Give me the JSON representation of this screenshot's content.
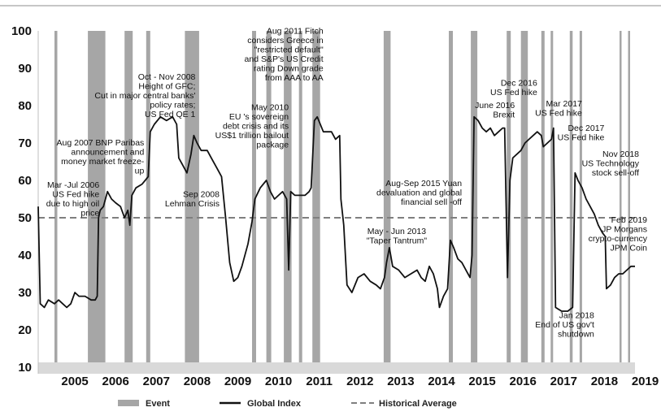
{
  "chart_data": {
    "type": "line",
    "title": "",
    "xlabel": "",
    "ylabel": "",
    "ylim": [
      10,
      100
    ],
    "xlim": [
      2004.6,
      2019.25
    ],
    "yticks": [
      10,
      20,
      30,
      40,
      50,
      60,
      70,
      80,
      90,
      100
    ],
    "xticks": [
      "2005",
      "2006",
      "2007",
      "2008",
      "2009",
      "2010",
      "2011",
      "2012",
      "2013",
      "2014",
      "2015",
      "2016",
      "2017",
      "2018",
      "2019"
    ],
    "grid": false,
    "legend_position": "bottom",
    "legend": [
      {
        "label": "Event",
        "kind": "bar"
      },
      {
        "label": "Global Index",
        "kind": "line"
      },
      {
        "label": "Historical Average",
        "kind": "dashed"
      }
    ],
    "colors": {
      "event": "#a6a6a6",
      "line": "#111111",
      "average": "#7f7f7f",
      "axis_band": "#d9d9d9"
    },
    "historical_average": 50,
    "events": [
      {
        "start": 2005.0,
        "end": 2005.07
      },
      {
        "start": 2005.82,
        "end": 2006.25
      },
      {
        "start": 2006.72,
        "end": 2006.92
      },
      {
        "start": 2007.25,
        "end": 2007.35
      },
      {
        "start": 2008.2,
        "end": 2008.55
      },
      {
        "start": 2009.85,
        "end": 2009.95
      },
      {
        "start": 2010.2,
        "end": 2010.32
      },
      {
        "start": 2010.63,
        "end": 2010.82
      },
      {
        "start": 2011.0,
        "end": 2011.08
      },
      {
        "start": 2011.33,
        "end": 2011.52
      },
      {
        "start": 2013.08,
        "end": 2013.25
      },
      {
        "start": 2014.68,
        "end": 2014.78
      },
      {
        "start": 2015.22,
        "end": 2015.38
      },
      {
        "start": 2016.1,
        "end": 2016.2
      },
      {
        "start": 2016.45,
        "end": 2016.62
      },
      {
        "start": 2016.95,
        "end": 2017.03
      },
      {
        "start": 2017.18,
        "end": 2017.24
      },
      {
        "start": 2017.65,
        "end": 2017.72
      },
      {
        "start": 2017.89,
        "end": 2017.95
      },
      {
        "start": 2018.87,
        "end": 2018.92
      },
      {
        "start": 2019.08,
        "end": 2019.13
      }
    ],
    "series": [
      {
        "values": [
          [
            2004.6,
            53
          ],
          [
            2004.65,
            27
          ],
          [
            2004.75,
            26
          ],
          [
            2004.85,
            28
          ],
          [
            2005.0,
            27
          ],
          [
            2005.1,
            28
          ],
          [
            2005.2,
            27
          ],
          [
            2005.3,
            26
          ],
          [
            2005.4,
            27
          ],
          [
            2005.5,
            30
          ],
          [
            2005.6,
            29
          ],
          [
            2005.75,
            29
          ],
          [
            2005.9,
            28
          ],
          [
            2006.0,
            28
          ],
          [
            2006.05,
            29
          ],
          [
            2006.08,
            50
          ],
          [
            2006.12,
            52
          ],
          [
            2006.2,
            53
          ],
          [
            2006.3,
            57
          ],
          [
            2006.4,
            55
          ],
          [
            2006.5,
            54
          ],
          [
            2006.62,
            53
          ],
          [
            2006.72,
            50
          ],
          [
            2006.8,
            52
          ],
          [
            2006.85,
            48
          ],
          [
            2006.9,
            56
          ],
          [
            2007.0,
            58
          ],
          [
            2007.15,
            59
          ],
          [
            2007.3,
            61
          ],
          [
            2007.35,
            73
          ],
          [
            2007.45,
            75
          ],
          [
            2007.6,
            77
          ],
          [
            2007.75,
            76
          ],
          [
            2007.9,
            77
          ],
          [
            2008.0,
            75
          ],
          [
            2008.05,
            66
          ],
          [
            2008.15,
            64
          ],
          [
            2008.25,
            62
          ],
          [
            2008.35,
            67
          ],
          [
            2008.42,
            72
          ],
          [
            2008.5,
            70
          ],
          [
            2008.6,
            68
          ],
          [
            2008.75,
            68
          ],
          [
            2008.85,
            66
          ],
          [
            2009.0,
            63
          ],
          [
            2009.1,
            61
          ],
          [
            2009.2,
            50
          ],
          [
            2009.3,
            38
          ],
          [
            2009.4,
            33
          ],
          [
            2009.5,
            34
          ],
          [
            2009.6,
            37
          ],
          [
            2009.75,
            43
          ],
          [
            2009.85,
            49
          ],
          [
            2009.92,
            55
          ],
          [
            2010.05,
            58
          ],
          [
            2010.2,
            60
          ],
          [
            2010.3,
            57
          ],
          [
            2010.4,
            55
          ],
          [
            2010.5,
            56
          ],
          [
            2010.6,
            57
          ],
          [
            2010.7,
            55
          ],
          [
            2010.75,
            36
          ],
          [
            2010.8,
            57
          ],
          [
            2010.9,
            56
          ],
          [
            2011.0,
            56
          ],
          [
            2011.15,
            56
          ],
          [
            2011.25,
            57
          ],
          [
            2011.3,
            58
          ],
          [
            2011.38,
            76
          ],
          [
            2011.45,
            77
          ],
          [
            2011.6,
            73
          ],
          [
            2011.8,
            73
          ],
          [
            2011.9,
            71
          ],
          [
            2012.0,
            72
          ],
          [
            2012.03,
            55
          ],
          [
            2012.1,
            48
          ],
          [
            2012.18,
            32
          ],
          [
            2012.3,
            30
          ],
          [
            2012.45,
            34
          ],
          [
            2012.6,
            35
          ],
          [
            2012.75,
            33
          ],
          [
            2012.9,
            32
          ],
          [
            2013.0,
            31
          ],
          [
            2013.1,
            34
          ],
          [
            2013.15,
            38
          ],
          [
            2013.22,
            42
          ],
          [
            2013.3,
            37
          ],
          [
            2013.45,
            36
          ],
          [
            2013.6,
            34
          ],
          [
            2013.75,
            35
          ],
          [
            2013.9,
            36
          ],
          [
            2014.0,
            34
          ],
          [
            2014.1,
            33
          ],
          [
            2014.2,
            37
          ],
          [
            2014.3,
            35
          ],
          [
            2014.4,
            31
          ],
          [
            2014.45,
            26
          ],
          [
            2014.55,
            29
          ],
          [
            2014.65,
            31
          ],
          [
            2014.72,
            44
          ],
          [
            2014.8,
            42
          ],
          [
            2014.9,
            39
          ],
          [
            2015.0,
            38
          ],
          [
            2015.1,
            36
          ],
          [
            2015.2,
            34
          ],
          [
            2015.25,
            40
          ],
          [
            2015.3,
            77
          ],
          [
            2015.4,
            76
          ],
          [
            2015.5,
            74
          ],
          [
            2015.6,
            73
          ],
          [
            2015.7,
            74
          ],
          [
            2015.8,
            72
          ],
          [
            2015.9,
            73
          ],
          [
            2016.0,
            74
          ],
          [
            2016.05,
            74
          ],
          [
            2016.12,
            34
          ],
          [
            2016.18,
            60
          ],
          [
            2016.25,
            66
          ],
          [
            2016.35,
            67
          ],
          [
            2016.45,
            68
          ],
          [
            2016.55,
            70
          ],
          [
            2016.65,
            71
          ],
          [
            2016.75,
            72
          ],
          [
            2016.85,
            73
          ],
          [
            2016.95,
            72
          ],
          [
            2017.0,
            69
          ],
          [
            2017.1,
            70
          ],
          [
            2017.2,
            71
          ],
          [
            2017.25,
            74
          ],
          [
            2017.3,
            26
          ],
          [
            2017.45,
            25
          ],
          [
            2017.6,
            25
          ],
          [
            2017.72,
            26
          ],
          [
            2017.78,
            62
          ],
          [
            2017.85,
            60
          ],
          [
            2017.95,
            58
          ],
          [
            2018.05,
            55
          ],
          [
            2018.15,
            53
          ],
          [
            2018.25,
            51
          ],
          [
            2018.35,
            48
          ],
          [
            2018.45,
            46
          ],
          [
            2018.52,
            45
          ],
          [
            2018.55,
            31
          ],
          [
            2018.65,
            32
          ],
          [
            2018.75,
            34
          ],
          [
            2018.85,
            35
          ],
          [
            2018.95,
            35
          ],
          [
            2019.05,
            36
          ],
          [
            2019.15,
            37
          ],
          [
            2019.25,
            37
          ]
        ]
      }
    ],
    "annotations": [
      {
        "lines": [
          "Mar -Jul 2006",
          "US Fed hike",
          "due to high oil",
          "price"
        ],
        "anchor": "end",
        "at": [
          2006.1,
          58.0
        ]
      },
      {
        "lines": [
          "Aug 2007 BNP Paribas",
          "announcement and",
          "money market freeze-",
          "up"
        ],
        "anchor": "end",
        "at": [
          2007.2,
          69.3
        ]
      },
      {
        "lines": [
          "Oct - Nov 2008",
          "Height of GFC;",
          "Cut in major central banks'",
          "policy rates;",
          "US Fed QE 1"
        ],
        "anchor": "end",
        "at": [
          2008.46,
          87.0
        ]
      },
      {
        "lines": [
          "Sep 2008",
          "Lehman Crisis"
        ],
        "anchor": "end",
        "at": [
          2009.05,
          55.5
        ]
      },
      {
        "lines": [
          "May  2010",
          "EU 's sovereign",
          "debt crisis and its",
          "US$1 trillion bailout",
          "package"
        ],
        "anchor": "end",
        "at": [
          2010.75,
          78.8
        ]
      },
      {
        "lines": [
          "Aug 2011 Fitch",
          "considers Greece in",
          "\"restricted default\"",
          "and S&P's US Credit",
          "rating Down grade",
          "from AAA to AA"
        ],
        "anchor": "end",
        "at": [
          2011.6,
          99.2
        ]
      },
      {
        "lines": [
          "May  - Jun 2013",
          "\"Taper Tantrum\""
        ],
        "anchor": "middle",
        "at": [
          2013.4,
          45.6
        ]
      },
      {
        "lines": [
          "Aug-Sep 2015 Yuan",
          "devaluation and global",
          "financial  sell -off"
        ],
        "anchor": "end",
        "at": [
          2015.0,
          58.5
        ]
      },
      {
        "lines": [
          "June 2016",
          "Brexit"
        ],
        "anchor": "end",
        "at": [
          2016.3,
          79.3
        ]
      },
      {
        "lines": [
          "Dec 2016",
          "US Fed hike"
        ],
        "anchor": "end",
        "at": [
          2016.85,
          85.3
        ]
      },
      {
        "lines": [
          "Mar 2017",
          "US Fed hike"
        ],
        "anchor": "end",
        "at": [
          2017.95,
          79.8
        ]
      },
      {
        "lines": [
          "Dec 2017",
          "US Fed hike"
        ],
        "anchor": "end",
        "at": [
          2018.5,
          73.3
        ]
      },
      {
        "lines": [
          "Nov 2018",
          "US Technology",
          "stock sell-off"
        ],
        "anchor": "end",
        "at": [
          2019.35,
          66.3
        ]
      },
      {
        "lines": [
          "Feb 2019",
          "JP Morgans",
          "crypto-currency",
          "JPM Coin"
        ],
        "anchor": "end",
        "at": [
          2019.55,
          48.7
        ]
      },
      {
        "lines": [
          "Jan 2018",
          "End of US  gov't",
          "shutdown"
        ],
        "anchor": "end",
        "at": [
          2018.25,
          23.2
        ]
      }
    ]
  }
}
